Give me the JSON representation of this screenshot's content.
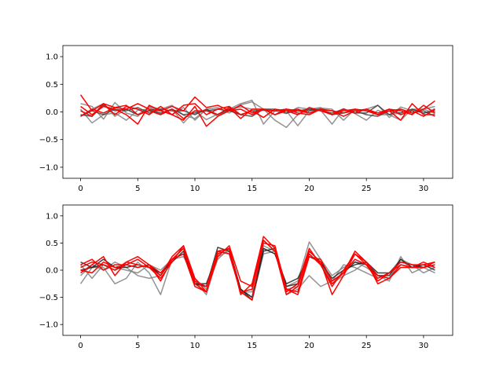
{
  "chart_data": [
    {
      "type": "line",
      "title": "",
      "xlabel": "",
      "ylabel": "",
      "xlim": [
        -1.55,
        32.55
      ],
      "ylim": [
        -1.2,
        1.2
      ],
      "xticks": [
        0,
        5,
        10,
        15,
        20,
        25,
        30
      ],
      "yticks": [
        1.0,
        0.5,
        0.0,
        -0.5,
        -1.0
      ],
      "xtick_labels": [
        "0",
        "5",
        "10",
        "15",
        "20",
        "25",
        "30"
      ],
      "ytick_labels": [
        "1.0",
        "0.5",
        "0.0",
        "−0.5",
        "−1.0"
      ],
      "grid": false,
      "legend": "none",
      "x": [
        0,
        1,
        2,
        3,
        4,
        5,
        6,
        7,
        8,
        9,
        10,
        11,
        12,
        13,
        14,
        15,
        16,
        17,
        18,
        19,
        20,
        21,
        22,
        23,
        24,
        25,
        26,
        27,
        28,
        29,
        30,
        31
      ],
      "series": [
        {
          "color": "#808080",
          "values": [
            0.15,
            0.1,
            -0.13,
            0.17,
            -0.02,
            -0.08,
            0.1,
            0.05,
            0.12,
            -0.06,
            -0.12,
            0.04,
            -0.08,
            0.05,
            0.15,
            0.21,
            -0.22,
            0.02,
            -0.03,
            0.08,
            0.05,
            0.08,
            -0.05,
            0.06,
            -0.02,
            0.05,
            0.12,
            -0.1,
            0.09,
            0.02,
            0.05,
            0.1
          ]
        },
        {
          "color": "#808080",
          "values": [
            0.05,
            -0.2,
            -0.05,
            -0.02,
            -0.15,
            0.03,
            0.05,
            -0.03,
            0.05,
            -0.2,
            0.02,
            -0.14,
            -0.04,
            0.04,
            0.09,
            0.05,
            0.05,
            -0.15,
            -0.28,
            -0.05,
            0.05,
            0.03,
            -0.22,
            0.05,
            -0.03,
            -0.15,
            0.03,
            -0.05,
            -0.02,
            0.05,
            -0.03,
            0.06
          ]
        },
        {
          "color": "#808080",
          "values": [
            -0.08,
            0.05,
            0.15,
            -0.08,
            0.05,
            -0.05,
            0.08,
            0.03,
            -0.05,
            0.08,
            -0.15,
            0.05,
            0.08,
            -0.02,
            0.13,
            0.18,
            0.05,
            -0.05,
            0.02,
            -0.25,
            0.02,
            0.07,
            0.05,
            -0.15,
            0.05,
            0.02,
            -0.05,
            -0.05,
            -0.15,
            0.05,
            0.05,
            -0.03
          ]
        },
        {
          "color": "#404040",
          "values": [
            -0.05,
            -0.08,
            0.12,
            0.02,
            0.05,
            -0.05,
            0.03,
            -0.02,
            0.05,
            -0.05,
            -0.02,
            0.02,
            0.05,
            0.02,
            -0.05,
            0.02,
            0.03,
            0.02,
            0.05,
            0.02,
            0.05,
            0.02,
            -0.02,
            0.05,
            -0.02,
            -0.02,
            0.12,
            -0.05,
            0.05,
            -0.02,
            0.02,
            -0.08
          ]
        },
        {
          "color": "#404040",
          "values": [
            -0.08,
            0.02,
            -0.05,
            0.05,
            0.02,
            0.08,
            -0.02,
            0.05,
            0.02,
            0.02,
            -0.05,
            0.05,
            -0.05,
            0.05,
            -0.05,
            -0.08,
            0.05,
            0.05,
            -0.02,
            0.02,
            0.02,
            0.05,
            -0.05,
            -0.02,
            0.02,
            -0.05,
            -0.08,
            0.02,
            -0.02,
            0.05,
            -0.02,
            0.02
          ]
        },
        {
          "color": "#ff0000",
          "values": [
            0.31,
            0.02,
            0.15,
            0.08,
            0.05,
            0.15,
            0.05,
            0.02,
            0.1,
            0.02,
            0.27,
            0.08,
            0.12,
            0.02,
            0.12,
            -0.02,
            0.05,
            0.02,
            0.05,
            0.02,
            -0.02,
            0.05,
            0.02,
            -0.02,
            0.05,
            0.02,
            -0.05,
            0.02,
            0.05,
            -0.02,
            0.05,
            0.2
          ]
        },
        {
          "color": "#ff0000",
          "values": [
            0.1,
            -0.05,
            0.1,
            0.05,
            -0.05,
            -0.22,
            0.12,
            0.02,
            -0.05,
            0.12,
            0.15,
            -0.05,
            0.05,
            0.1,
            -0.05,
            0.02,
            -0.1,
            0.05,
            0.02,
            -0.05,
            0.08,
            0.02,
            -0.05,
            0.05,
            -0.02,
            0.05,
            -0.05,
            0.02,
            -0.15,
            0.15,
            -0.05,
            -0.05
          ]
        },
        {
          "color": "#ff0000",
          "values": [
            0.02,
            -0.08,
            0.15,
            -0.05,
            0.1,
            0.05,
            -0.05,
            0.1,
            -0.05,
            -0.15,
            0.1,
            -0.26,
            -0.08,
            0.02,
            0.05,
            -0.05,
            0.05,
            -0.05,
            0.02,
            0.05,
            -0.02,
            0.05,
            -0.05,
            0.02,
            0.05,
            0.02,
            -0.05,
            0.05,
            0.02,
            -0.05,
            0.12,
            -0.02
          ]
        },
        {
          "color": "#ff0000",
          "values": [
            -0.08,
            0.05,
            -0.02,
            0.08,
            0.12,
            -0.05,
            0.02,
            -0.05,
            0.05,
            -0.12,
            0.02,
            0.02,
            -0.05,
            0.08,
            -0.12,
            0.05,
            0.05,
            -0.05,
            0.05,
            -0.02,
            -0.05,
            0.05,
            0.02,
            -0.08,
            0.02,
            0.05,
            -0.02,
            0.05,
            -0.05,
            0.02,
            -0.08,
            0.05
          ]
        }
      ]
    },
    {
      "type": "line",
      "title": "",
      "xlabel": "",
      "ylabel": "",
      "xlim": [
        -1.55,
        32.55
      ],
      "ylim": [
        -1.2,
        1.2
      ],
      "xticks": [
        0,
        5,
        10,
        15,
        20,
        25,
        30
      ],
      "yticks": [
        1.0,
        0.5,
        0.0,
        -0.5,
        -1.0
      ],
      "xtick_labels": [
        "0",
        "5",
        "10",
        "15",
        "20",
        "25",
        "30"
      ],
      "ytick_labels": [
        "1.0",
        "0.5",
        "0.0",
        "−0.5",
        "−1.0"
      ],
      "grid": false,
      "legend": "none",
      "x": [
        0,
        1,
        2,
        3,
        4,
        5,
        6,
        7,
        8,
        9,
        10,
        11,
        12,
        13,
        14,
        15,
        16,
        17,
        18,
        19,
        20,
        21,
        22,
        23,
        24,
        25,
        26,
        27,
        28,
        29,
        30,
        31
      ],
      "series": [
        {
          "color": "#808080",
          "values": [
            -0.25,
            0.05,
            0.05,
            -0.25,
            -0.15,
            0.15,
            -0.05,
            -0.45,
            0.2,
            0.4,
            -0.2,
            -0.45,
            0.25,
            0.35,
            -0.4,
            -0.4,
            0.4,
            0.3,
            -0.3,
            -0.2,
            0.52,
            0.2,
            -0.1,
            0.05,
            0.15,
            0.05,
            -0.1,
            -0.2,
            0.25,
            -0.05,
            0.05,
            -0.05
          ]
        },
        {
          "color": "#808080",
          "values": [
            -0.1,
            0.1,
            0.0,
            0.15,
            0.05,
            -0.1,
            -0.15,
            -0.1,
            0.2,
            0.25,
            -0.15,
            -0.35,
            0.2,
            0.4,
            -0.35,
            -0.5,
            0.45,
            0.35,
            -0.45,
            -0.35,
            -0.1,
            -0.3,
            -0.2,
            0.1,
            0.05,
            -0.05,
            -0.15,
            -0.05,
            0.2,
            0.1,
            -0.05,
            0.05
          ]
        },
        {
          "color": "#808080",
          "values": [
            0.1,
            -0.15,
            0.1,
            0.05,
            0.0,
            -0.05,
            0.1,
            0.0,
            0.2,
            0.3,
            -0.3,
            -0.4,
            0.35,
            0.3,
            -0.4,
            -0.55,
            0.3,
            0.35,
            -0.35,
            -0.3,
            0.3,
            0.1,
            -0.25,
            -0.1,
            0.0,
            0.15,
            -0.1,
            -0.15,
            0.2,
            0.05,
            0.1,
            0.05
          ]
        },
        {
          "color": "#202020",
          "values": [
            0.0,
            0.05,
            0.1,
            0.0,
            0.1,
            0.05,
            0.1,
            -0.1,
            0.2,
            0.3,
            -0.25,
            -0.3,
            0.42,
            0.35,
            -0.35,
            -0.55,
            0.35,
            0.4,
            -0.3,
            -0.25,
            0.35,
            0.15,
            -0.2,
            -0.05,
            0.15,
            0.1,
            -0.1,
            -0.1,
            0.2,
            0.05,
            0.1,
            0.0
          ]
        },
        {
          "color": "#202020",
          "values": [
            0.15,
            0.05,
            0.2,
            0.05,
            0.05,
            0.1,
            0.05,
            -0.05,
            0.15,
            0.35,
            -0.25,
            -0.25,
            0.3,
            0.4,
            -0.35,
            -0.5,
            0.4,
            0.3,
            -0.25,
            -0.15,
            0.25,
            0.15,
            -0.15,
            0.0,
            0.1,
            0.15,
            -0.05,
            -0.05,
            0.15,
            0.1,
            0.05,
            0.1
          ]
        },
        {
          "color": "#ff0000",
          "values": [
            0.1,
            0.2,
            0.0,
            0.1,
            0.1,
            0.2,
            0.05,
            -0.1,
            0.25,
            0.45,
            -0.2,
            -0.3,
            0.35,
            0.4,
            -0.45,
            -0.25,
            0.62,
            0.4,
            -0.4,
            -0.25,
            0.4,
            0.1,
            -0.3,
            0.0,
            0.3,
            0.1,
            -0.15,
            -0.05,
            0.15,
            0.1,
            0.1,
            0.15
          ]
        },
        {
          "color": "#ff0000",
          "values": [
            0.05,
            0.15,
            0.1,
            0.0,
            0.15,
            0.25,
            0.1,
            -0.05,
            0.2,
            0.4,
            -0.25,
            -0.4,
            0.3,
            0.4,
            -0.4,
            -0.35,
            0.55,
            0.35,
            -0.45,
            -0.3,
            0.35,
            0.15,
            -0.45,
            -0.1,
            0.3,
            0.15,
            -0.25,
            -0.15,
            0.1,
            0.05,
            0.05,
            0.1
          ]
        },
        {
          "color": "#ff0000",
          "values": [
            -0.05,
            0.1,
            0.25,
            -0.1,
            0.15,
            0.1,
            0.05,
            -0.15,
            0.15,
            0.45,
            -0.15,
            -0.4,
            0.25,
            0.45,
            -0.2,
            -0.3,
            0.5,
            0.45,
            -0.35,
            -0.45,
            0.25,
            0.2,
            -0.2,
            -0.05,
            0.35,
            0.15,
            -0.1,
            -0.15,
            0.05,
            0.05,
            0.15,
            0.05
          ]
        },
        {
          "color": "#ff0000",
          "values": [
            0.0,
            -0.05,
            0.15,
            0.05,
            0.1,
            0.05,
            0.1,
            -0.2,
            0.2,
            0.3,
            -0.3,
            -0.4,
            0.35,
            0.3,
            -0.4,
            -0.55,
            0.55,
            0.35,
            -0.35,
            -0.4,
            0.3,
            0.1,
            -0.25,
            -0.05,
            0.2,
            0.1,
            -0.2,
            -0.05,
            0.1,
            0.05,
            0.05,
            0.15
          ]
        }
      ]
    }
  ]
}
